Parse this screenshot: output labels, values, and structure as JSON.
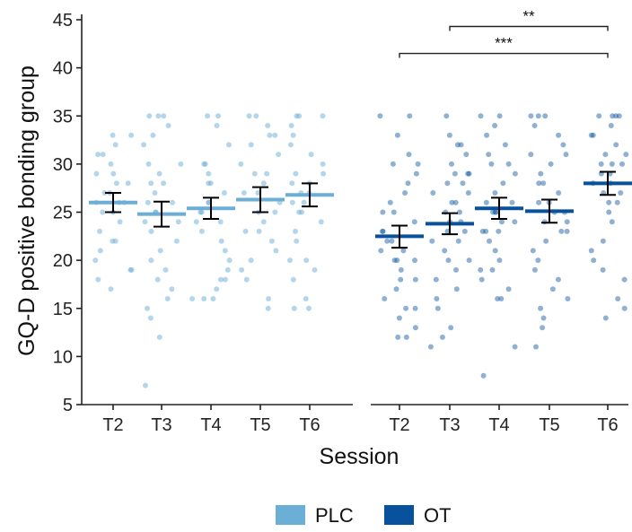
{
  "chart_data": {
    "type": "scatter",
    "ylabel": "GQ-D positive bonding group",
    "xlabel": "Session",
    "ylim": [
      5,
      45
    ],
    "yticks": [
      5,
      10,
      15,
      20,
      25,
      30,
      35,
      40,
      45
    ],
    "sessions": [
      "T2",
      "T3",
      "T4",
      "T5",
      "T6"
    ],
    "groups": [
      {
        "name": "PLC",
        "color": "#6baed6",
        "means": [
          26.0,
          24.8,
          25.4,
          26.3,
          26.8
        ],
        "se_low": [
          25.0,
          23.5,
          24.3,
          25.0,
          25.6
        ],
        "se_high": [
          27.0,
          26.1,
          26.5,
          27.6,
          28.0
        ],
        "points": [
          [
            33,
            32,
            31,
            31,
            30,
            29,
            29,
            28,
            28,
            27,
            27,
            26,
            26,
            26,
            25,
            25,
            24,
            23,
            22,
            22,
            21,
            20,
            19,
            19,
            18,
            17,
            33
          ],
          [
            35,
            35,
            35,
            34,
            33,
            30,
            30,
            29,
            28,
            28,
            27,
            26,
            26,
            25,
            25,
            24,
            24,
            23,
            22,
            21,
            20,
            19,
            18,
            17,
            16,
            15,
            14,
            12,
            7,
            32
          ],
          [
            35,
            35,
            34,
            32,
            30,
            29,
            28,
            28,
            27,
            26,
            26,
            25,
            25,
            24,
            24,
            23,
            22,
            21,
            20,
            19,
            18,
            18,
            17,
            16,
            16,
            16,
            30
          ],
          [
            35,
            35,
            34,
            33,
            32,
            31,
            30,
            29,
            28,
            27,
            27,
            26,
            25,
            25,
            24,
            23,
            23,
            22,
            21,
            20,
            19,
            18,
            16,
            15,
            29,
            33
          ],
          [
            35,
            35,
            35,
            34,
            33,
            32,
            31,
            30,
            29,
            29,
            28,
            28,
            27,
            27,
            26,
            26,
            25,
            25,
            24,
            23,
            22,
            20,
            19,
            18,
            16,
            15,
            15,
            20
          ]
        ]
      },
      {
        "name": "OT",
        "color": "#08519c",
        "means": [
          22.5,
          23.8,
          25.4,
          25.1,
          28.0
        ],
        "se_low": [
          21.3,
          22.7,
          24.3,
          23.9,
          26.8
        ],
        "se_high": [
          23.6,
          24.9,
          26.5,
          26.3,
          29.2
        ],
        "points": [
          [
            35,
            35,
            33,
            31,
            30,
            29,
            28,
            27,
            26,
            25,
            25,
            24,
            23,
            23,
            22,
            22,
            21,
            21,
            20,
            20,
            19,
            18,
            18,
            17,
            16,
            15,
            15,
            14,
            13,
            12,
            12,
            30,
            20
          ],
          [
            35,
            33,
            32,
            32,
            31,
            30,
            29,
            29,
            28,
            28,
            27,
            27,
            26,
            26,
            25,
            25,
            24,
            24,
            23,
            23,
            22,
            22,
            21,
            20,
            20,
            19,
            18,
            17,
            16,
            15,
            13,
            12,
            11,
            29
          ],
          [
            35,
            35,
            34,
            33,
            32,
            31,
            30,
            30,
            29,
            28,
            27,
            26,
            26,
            25,
            25,
            24,
            24,
            23,
            23,
            23,
            22,
            21,
            20,
            19,
            19,
            18,
            17,
            16,
            16,
            11,
            8,
            25
          ],
          [
            35,
            35,
            35,
            34,
            33,
            32,
            31,
            30,
            29,
            28,
            28,
            27,
            26,
            26,
            25,
            25,
            24,
            24,
            23,
            23,
            22,
            21,
            20,
            19,
            18,
            17,
            16,
            15,
            14,
            13,
            11,
            31
          ],
          [
            35,
            35,
            35,
            35,
            34,
            33,
            32,
            31,
            30,
            30,
            29,
            29,
            28,
            28,
            27,
            27,
            26,
            26,
            25,
            24,
            22,
            21,
            20,
            19,
            18,
            16,
            15,
            14,
            30,
            31,
            33
          ]
        ]
      }
    ],
    "significance": [
      {
        "from_session": "T2",
        "to_session": "T6",
        "group": "OT",
        "y": 41.5,
        "label": "***"
      },
      {
        "from_session": "T3",
        "to_session": "T6",
        "group": "OT",
        "y": 44.3,
        "label": "**"
      }
    ],
    "legend_position": "bottom"
  }
}
